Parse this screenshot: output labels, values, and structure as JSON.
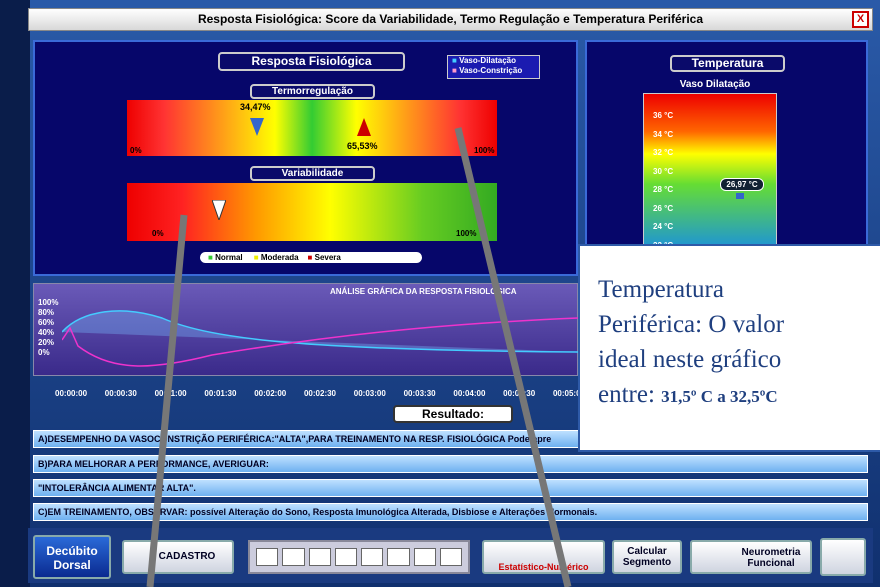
{
  "window": {
    "title": "Resposta Fisiológica: Score da Variabilidade, Termo Regulação e Temperatura Periférica",
    "close": "X"
  },
  "panel": {
    "title": "Resposta Fisiológica",
    "legend": [
      "Vaso-Dilatação",
      "Vaso-Constrição"
    ],
    "termo": {
      "label": "Termorregulação",
      "marker_low": "34,47%",
      "marker_high": "65,53%",
      "min": "0%",
      "max": "100%"
    },
    "variab": {
      "label": "Variabilidade",
      "min": "0%",
      "max": "100%"
    },
    "severity": [
      "Normal",
      "Moderada",
      "Severa"
    ]
  },
  "graph": {
    "title": "ANÁLISE GRÁFICA DA RESPOSTA FISIOLÓGICA",
    "yticks": [
      "100%",
      "80%",
      "60%",
      "40%",
      "20%",
      "0%"
    ],
    "xticks": [
      "00:00:00",
      "00:00:30",
      "00:01:00",
      "00:01:30",
      "00:02:00",
      "00:02:30",
      "00:03:00",
      "00:03:30",
      "00:04:00",
      "00:04:30",
      "00:05:00"
    ]
  },
  "temperature": {
    "title": "Temperatura",
    "subtitle": "Vaso Dilatação",
    "scale": [
      "36 °C",
      "34 °C",
      "32 °C",
      "30 °C",
      "28 °C",
      "26 °C",
      "24 °C",
      "22 °C"
    ],
    "reading": "26,97 °C"
  },
  "result": {
    "title": "Resultado:",
    "rows": [
      "A)DESEMPENHO DA VASOCONSTRIÇÃO PERIFÉRICA:\"ALTA\",PARA TREINAMENTO NA RESP. FISIOLÓGICA Pode apre",
      "B)PARA MELHORAR A PERFORMANCE, AVERIGUAR:",
      "\"INTOLERÂNCIA ALIMENTAR ALTA\".",
      "C)EM TREINAMENTO, OBSERVAR: possível Alteração do Sono, Resposta Imunológica Alterada, Disbiose e Alterações Hormonais."
    ]
  },
  "buttons": {
    "posture": "Decúbito Dorsal",
    "register": "CADASTRO",
    "stats": "Estatístico-Numérico",
    "segment": "Calcular Segmento",
    "neuro": "Neurometria Funcional"
  },
  "callout": {
    "lines": [
      "Temperatura",
      "Periférica: O valor",
      "ideal neste gráfico"
    ],
    "prefix": "entre:",
    "range": "31,5º C a 32,5ºC"
  }
}
